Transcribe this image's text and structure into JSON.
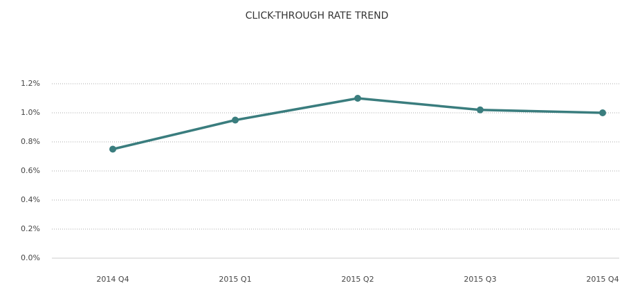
{
  "chart_data": {
    "type": "line",
    "title": "CLICK-THROUGH RATE TREND",
    "categories": [
      "2014 Q4",
      "2015 Q1",
      "2015 Q2",
      "2015 Q3",
      "2015 Q4"
    ],
    "series": [
      {
        "name": "Click-through rate",
        "color": "#3a7d7e",
        "values": [
          0.75,
          0.95,
          1.1,
          1.02,
          1.0
        ]
      }
    ],
    "ylim": [
      0,
      1.2
    ],
    "yticks": [
      {
        "value": 0,
        "label": "0.0%"
      },
      {
        "value": 0.2,
        "label": "0.2%"
      },
      {
        "value": 0.4,
        "label": "0.4%"
      },
      {
        "value": 0.6,
        "label": "0.6%"
      },
      {
        "value": 0.8,
        "label": "0.8%"
      },
      {
        "value": 1.0,
        "label": "1.0%"
      },
      {
        "value": 1.2,
        "label": "1.2%"
      }
    ],
    "grid": true
  }
}
